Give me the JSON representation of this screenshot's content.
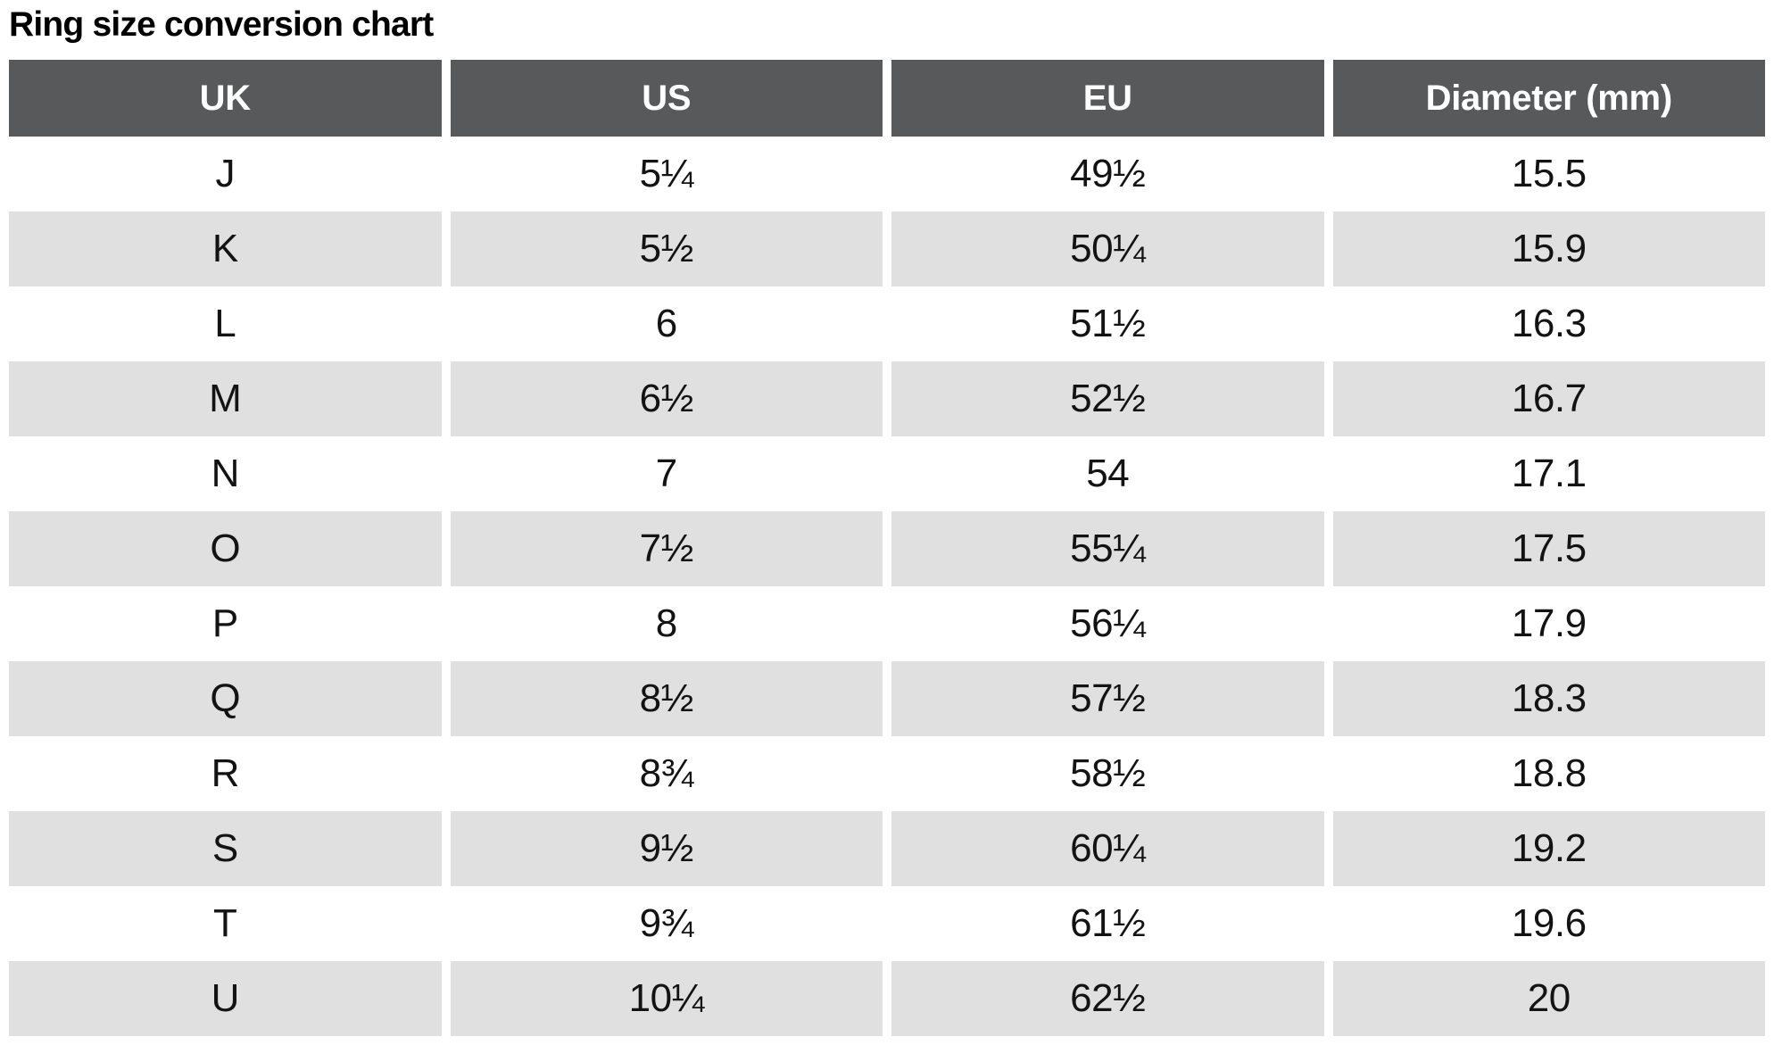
{
  "page": {
    "title": "Ring size conversion chart"
  },
  "colors": {
    "header_bg": "#58595b",
    "header_text": "#ffffff",
    "row_alt_bg": "#e0e0e1",
    "text": "#131313",
    "page_bg": "#ffffff"
  },
  "chart_data": {
    "type": "table",
    "title": "Ring size conversion chart",
    "columns": [
      "UK",
      "US",
      "EU",
      "Diameter (mm)"
    ],
    "rows": [
      [
        "J",
        "5¼",
        "49½",
        "15.5"
      ],
      [
        "K",
        "5½",
        "50¼",
        "15.9"
      ],
      [
        "L",
        "6",
        "51½",
        "16.3"
      ],
      [
        "M",
        "6½",
        "52½",
        "16.7"
      ],
      [
        "N",
        "7",
        "54",
        "17.1"
      ],
      [
        "O",
        "7½",
        "55¼",
        "17.5"
      ],
      [
        "P",
        "8",
        "56¼",
        "17.9"
      ],
      [
        "Q",
        "8½",
        "57½",
        "18.3"
      ],
      [
        "R",
        "8¾",
        "58½",
        "18.8"
      ],
      [
        "S",
        "9½",
        "60¼",
        "19.2"
      ],
      [
        "T",
        "9¾",
        "61½",
        "19.6"
      ],
      [
        "U",
        "10¼",
        "62½",
        "20"
      ]
    ]
  }
}
